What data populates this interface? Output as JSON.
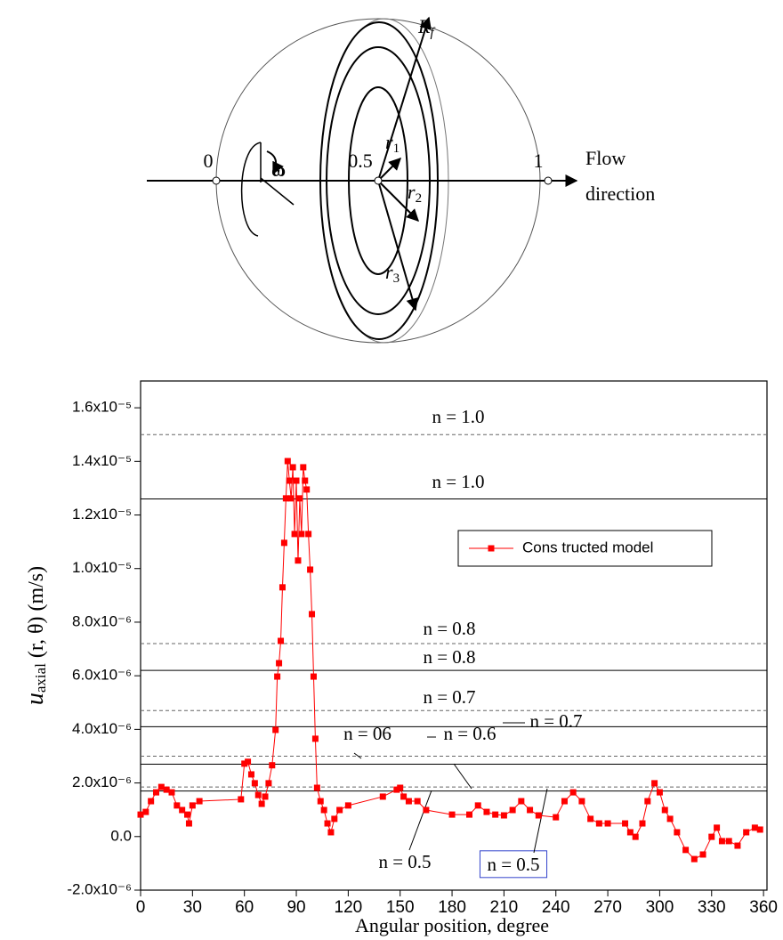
{
  "diagram": {
    "axis_labels": [
      "0",
      "0.5",
      "1"
    ],
    "flow_label": [
      "Flow",
      "direction"
    ],
    "radius_labels": [
      {
        "main": "R",
        "sub": "f"
      },
      {
        "main": "r",
        "sub": "1"
      },
      {
        "main": "r",
        "sub": "2"
      },
      {
        "main": "r",
        "sub": "3"
      }
    ],
    "rotation_label": "ω"
  },
  "chart_data": {
    "type": "line",
    "x_label": "Angular position, degree",
    "y_label": {
      "symbol": "u",
      "subscript": "axial",
      "rest": " (r, θ) (m/s)"
    },
    "xlim": [
      0,
      362
    ],
    "ylim": [
      -2e-06,
      1.7e-05
    ],
    "xticks": [
      0,
      30,
      60,
      90,
      120,
      150,
      180,
      210,
      240,
      270,
      300,
      330,
      360
    ],
    "yticks": [
      {
        "value": -2e-06,
        "label": "-2.0x10⁻⁶"
      },
      {
        "value": 0,
        "label": "0.0"
      },
      {
        "value": 2e-06,
        "label": "2.0x10⁻⁶"
      },
      {
        "value": 4e-06,
        "label": "4.0x10⁻⁶"
      },
      {
        "value": 6e-06,
        "label": "6.0x10⁻⁶"
      },
      {
        "value": 8e-06,
        "label": "8.0x10⁻⁶"
      },
      {
        "value": 1e-05,
        "label": "1.0x10⁻⁵"
      },
      {
        "value": 1.2e-05,
        "label": "1.2x10⁻⁵"
      },
      {
        "value": 1.4e-05,
        "label": "1.4x10⁻⁵"
      },
      {
        "value": 1.6e-05,
        "label": "1.6x10⁻⁵"
      }
    ],
    "legend": "upper right",
    "series": [
      {
        "name": "Cons tructed model",
        "color": "#ff0000",
        "marker": "square",
        "x": [
          0,
          3,
          6,
          9,
          12,
          15,
          18,
          21,
          24,
          27,
          28,
          30,
          34,
          58,
          60,
          62,
          64,
          66,
          68,
          70,
          72,
          74,
          76,
          78,
          79,
          80,
          81,
          82,
          83,
          84,
          85,
          86,
          87,
          88,
          89,
          90,
          91,
          92,
          93,
          94,
          95,
          96,
          97,
          98,
          99,
          100,
          101,
          102,
          104,
          106,
          108,
          110,
          112,
          115,
          120,
          140,
          148,
          150,
          152,
          155,
          160,
          165,
          180,
          190,
          195,
          200,
          205,
          210,
          215,
          220,
          225,
          230,
          240,
          245,
          250,
          255,
          260,
          265,
          270,
          280,
          283,
          286,
          290,
          293,
          297,
          300,
          303,
          306,
          310,
          315,
          320,
          325,
          330,
          333,
          336,
          340,
          345,
          350,
          355,
          358
        ],
        "values": [
          8.2e-07,
          9.2e-07,
          1.32e-06,
          1.65e-06,
          1.85e-06,
          1.75e-06,
          1.65e-06,
          1.16e-06,
          9.9e-07,
          8.2e-07,
          4.9e-07,
          1.16e-06,
          1.32e-06,
          1.39e-06,
          2.72e-06,
          2.79e-06,
          2.32e-06,
          1.99e-06,
          1.55e-06,
          1.22e-06,
          1.49e-06,
          1.99e-06,
          2.66e-06,
          3.98e-06,
          5.97e-06,
          6.47e-06,
          7.3e-06,
          9.3e-06,
          1.096e-05,
          1.262e-05,
          1.401e-05,
          1.328e-05,
          1.262e-05,
          1.378e-05,
          1.129e-05,
          1.328e-05,
          1.03e-05,
          1.262e-05,
          1.129e-05,
          1.378e-05,
          1.328e-05,
          1.295e-05,
          1.129e-05,
          9.96e-06,
          8.3e-06,
          5.97e-06,
          3.65e-06,
          1.82e-06,
          1.32e-06,
          9.9e-07,
          4.9e-07,
          1.6e-07,
          6.6e-07,
          9.9e-07,
          1.16e-06,
          1.49e-06,
          1.75e-06,
          1.82e-06,
          1.49e-06,
          1.32e-06,
          1.32e-06,
          9.9e-07,
          8.2e-07,
          8.2e-07,
          1.16e-06,
          9.2e-07,
          8.2e-07,
          7.9e-07,
          9.9e-07,
          1.32e-06,
          9.9e-07,
          7.9e-07,
          7.2e-07,
          1.32e-06,
          1.65e-06,
          1.32e-06,
          6.6e-07,
          4.9e-07,
          4.9e-07,
          4.9e-07,
          1.6e-07,
          -1e-08,
          4.9e-07,
          1.32e-06,
          1.99e-06,
          1.65e-06,
          9.9e-07,
          6.6e-07,
          1.6e-07,
          -5e-07,
          -8.4e-07,
          -6.7e-07,
          -1e-08,
          3.3e-07,
          -1.7e-07,
          -1.7e-07,
          -3.4e-07,
          1.6e-07,
          3.3e-07,
          2.6e-07
        ]
      }
    ],
    "reference_lines": [
      {
        "label": "n = 1.0",
        "value": 1.5e-05,
        "style": "dashed"
      },
      {
        "label": "n = 1.0",
        "value": 1.26e-05,
        "style": "solid"
      },
      {
        "label": "n = 0.8",
        "value": 7.2e-06,
        "style": "dashed"
      },
      {
        "label": "n = 0.8",
        "value": 6.2e-06,
        "style": "solid"
      },
      {
        "label": "n = 0.7",
        "value": 4.7e-06,
        "style": "dashed"
      },
      {
        "label": "n = 0.7",
        "value": 4.1e-06,
        "style": "solid"
      },
      {
        "label": "n = 06",
        "value": 3e-06,
        "style": "dashed"
      },
      {
        "label": "n = 0.6",
        "value": 2.7e-06,
        "style": "solid"
      },
      {
        "label": "n = 0.5",
        "value": 1.85e-06,
        "style": "dashed"
      },
      {
        "label": "n = 0.5",
        "value": 1.7e-06,
        "style": "solid"
      }
    ]
  }
}
